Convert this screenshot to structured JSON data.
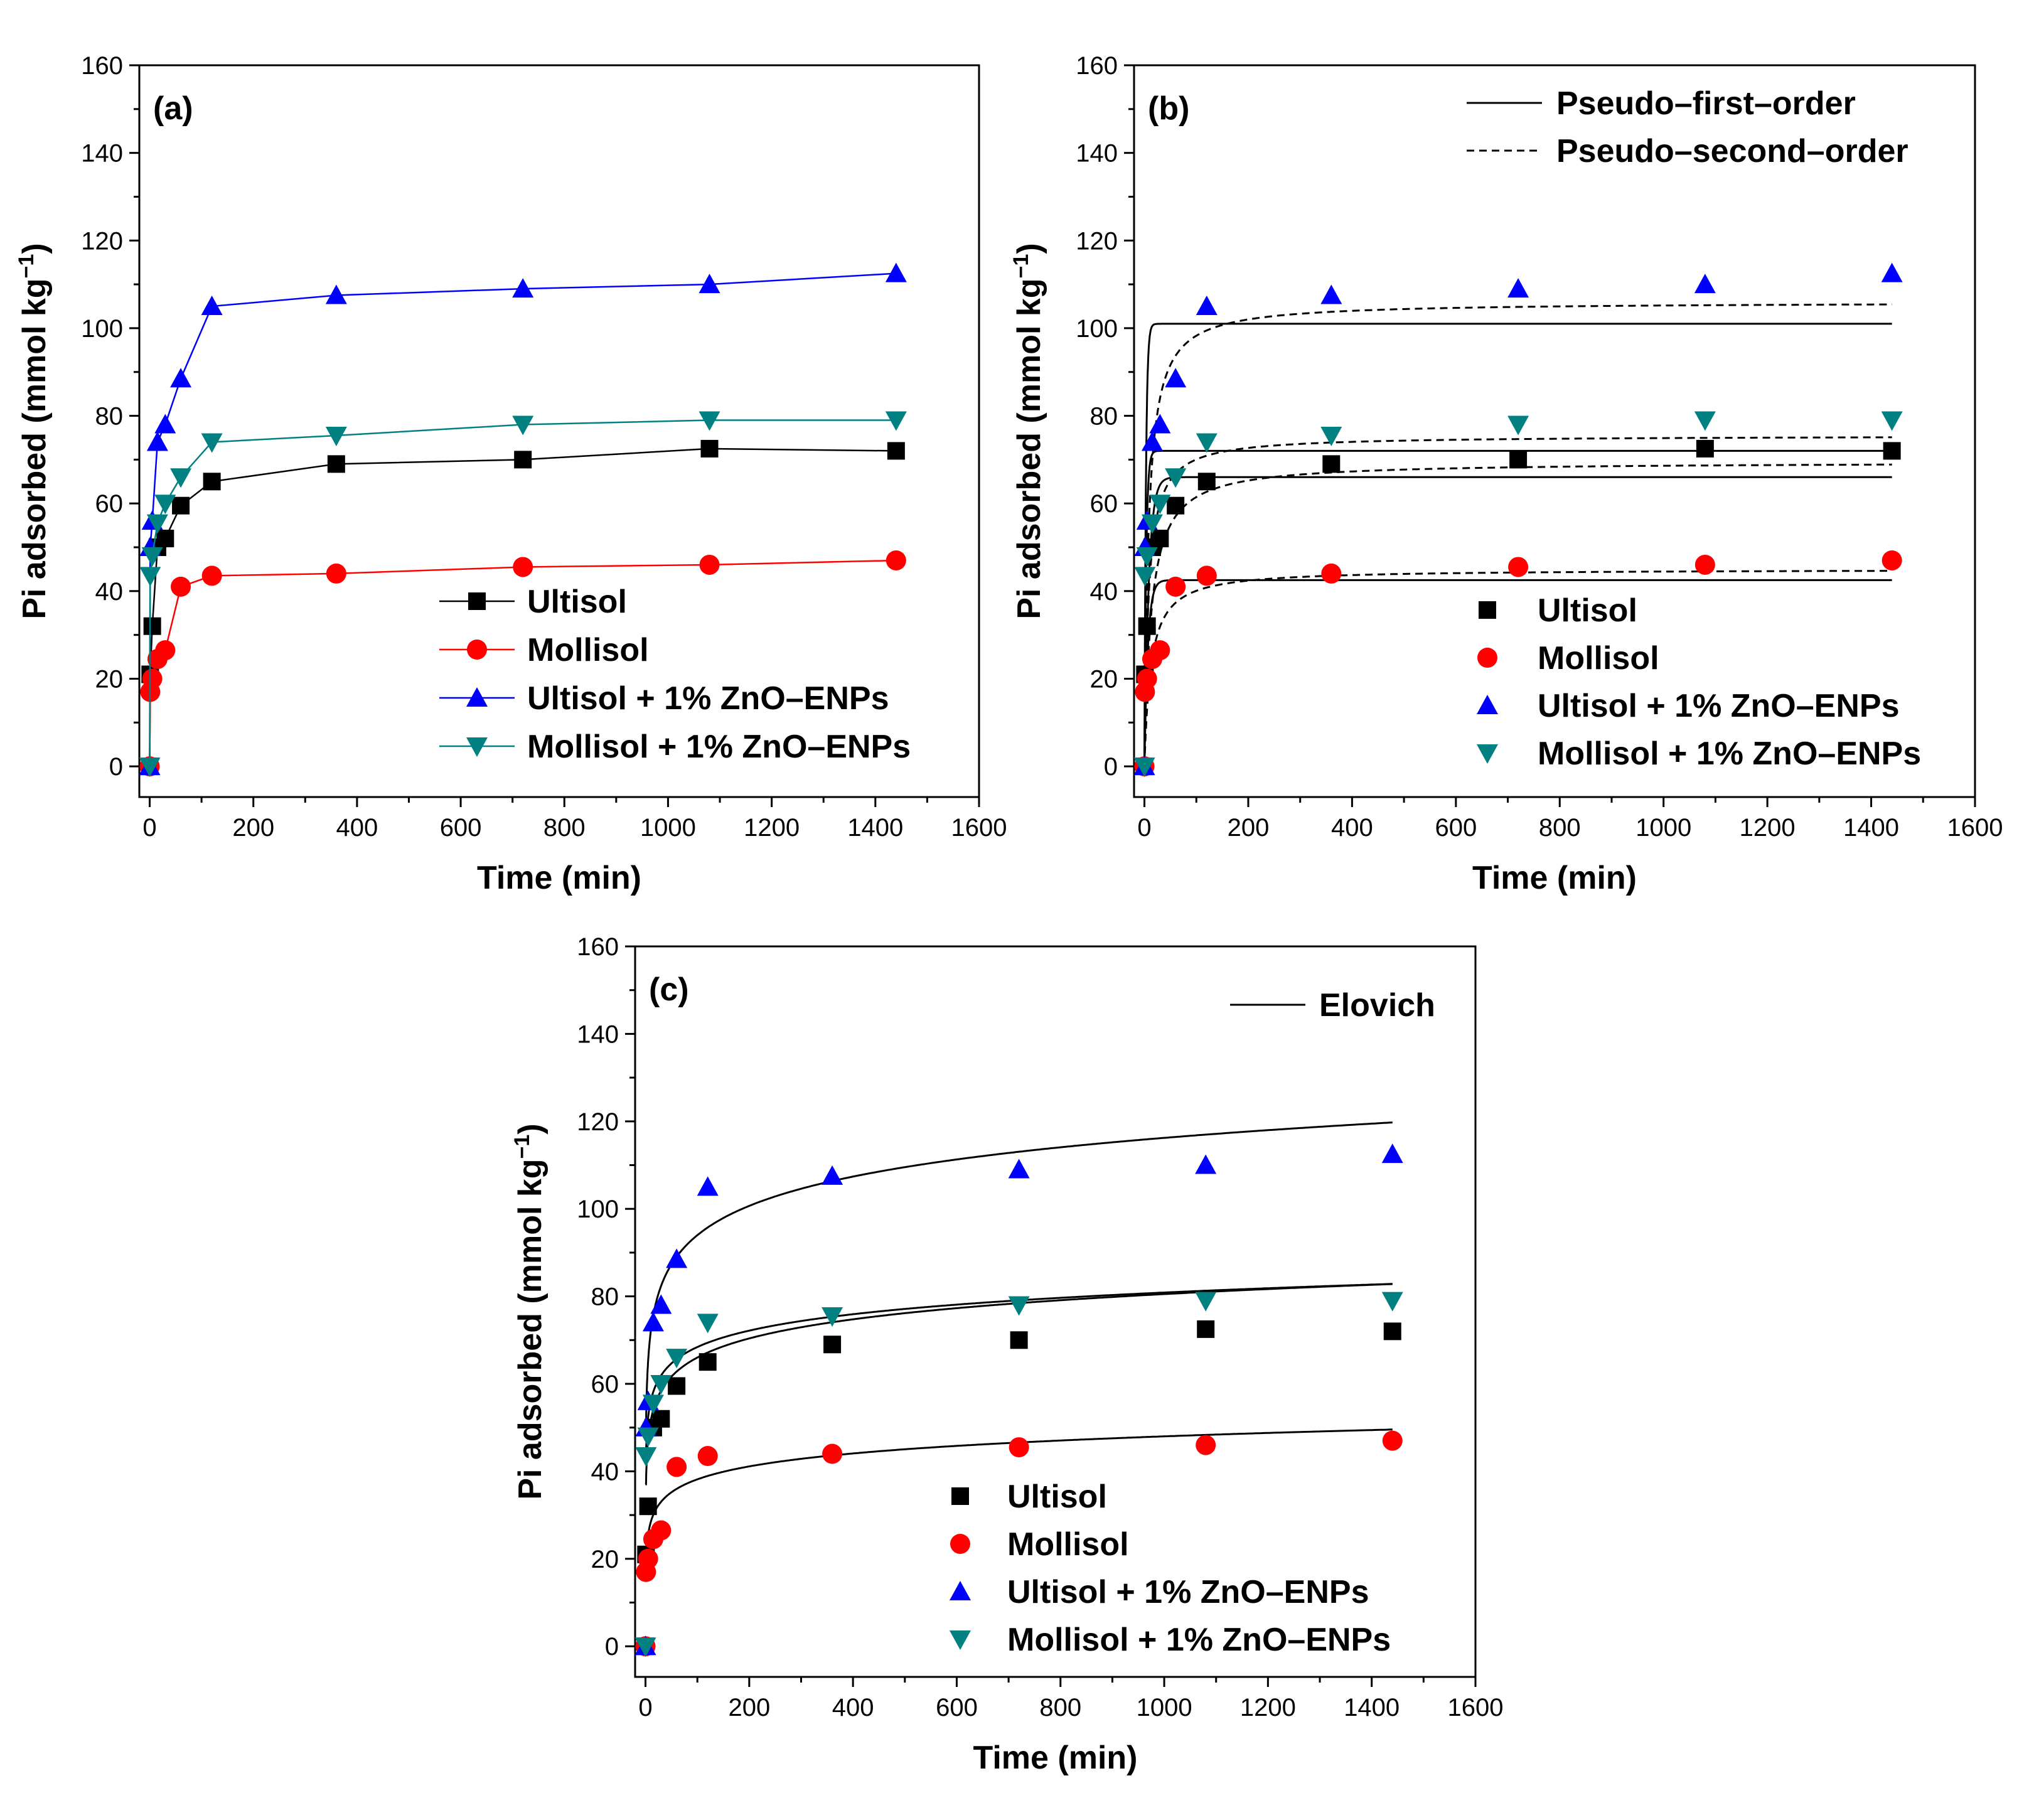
{
  "chart_data": [
    {
      "id": "a",
      "type": "line",
      "panel_label": "(a)",
      "xlabel": "Time (min)",
      "ylabel": "Pi adsorbed (mmol kg",
      "ylabel_sup": "−1",
      "ylabel_close": ")",
      "xlim": [
        -20,
        1600
      ],
      "ylim": [
        -7,
        160
      ],
      "xticks": [
        0,
        200,
        400,
        600,
        800,
        1000,
        1200,
        1400,
        1600
      ],
      "yticks": [
        0,
        20,
        40,
        60,
        80,
        100,
        120,
        140,
        160
      ],
      "legend_position": "bottom-right",
      "series": [
        {
          "name": "Ultisol",
          "color": "#000000",
          "marker": "square",
          "connect": true,
          "x": [
            0,
            1,
            5,
            15,
            30,
            60,
            120,
            360,
            720,
            1080,
            1440
          ],
          "y": [
            0,
            21,
            32,
            50,
            52,
            59.5,
            65,
            69,
            70,
            72.5,
            72
          ]
        },
        {
          "name": "Mollisol",
          "color": "#ff0000",
          "marker": "circle",
          "connect": true,
          "x": [
            0,
            1,
            5,
            15,
            30,
            60,
            120,
            360,
            720,
            1080,
            1440
          ],
          "y": [
            0,
            17,
            20,
            24.5,
            26.5,
            41,
            43.5,
            44,
            45.5,
            46,
            47
          ]
        },
        {
          "name": "Ultisol + 1% ZnO–ENPs",
          "color": "#0000ff",
          "marker": "triangle-up",
          "connect": true,
          "x": [
            0,
            1,
            5,
            15,
            30,
            60,
            120,
            360,
            720,
            1080,
            1440
          ],
          "y": [
            0,
            50,
            56,
            74,
            78,
            88.5,
            105,
            107.5,
            109,
            110,
            112.5
          ]
        },
        {
          "name": "Mollisol + 1% ZnO–ENPs",
          "color": "#008080",
          "marker": "triangle-down",
          "connect": true,
          "x": [
            0,
            1,
            5,
            15,
            30,
            60,
            120,
            360,
            720,
            1080,
            1440
          ],
          "y": [
            0,
            43.5,
            48,
            55.5,
            60,
            66,
            74,
            75.5,
            78,
            79,
            79
          ]
        }
      ]
    },
    {
      "id": "b",
      "type": "scatter",
      "panel_label": "(b)",
      "xlabel": "Time (min)",
      "ylabel": "Pi adsorbed (mmol kg",
      "ylabel_sup": "−1",
      "ylabel_close": ")",
      "xlim": [
        -20,
        1600
      ],
      "ylim": [
        -7,
        160
      ],
      "xticks": [
        0,
        200,
        400,
        600,
        800,
        1000,
        1200,
        1400,
        1600
      ],
      "yticks": [
        0,
        20,
        40,
        60,
        80,
        100,
        120,
        140,
        160
      ],
      "legend_position": "bottom-right",
      "fit_legend": {
        "position": "top-right",
        "entries": [
          "Pseudo–first–order",
          "Pseudo–second–order"
        ]
      },
      "series": [
        {
          "name": "Ultisol",
          "color": "#000000",
          "marker": "square",
          "x": [
            0,
            1,
            5,
            15,
            30,
            60,
            120,
            360,
            720,
            1080,
            1440
          ],
          "y": [
            0,
            21,
            32,
            50,
            52,
            59.5,
            65,
            69,
            70,
            72.5,
            72
          ]
        },
        {
          "name": "Mollisol",
          "color": "#ff0000",
          "marker": "circle",
          "x": [
            0,
            1,
            5,
            15,
            30,
            60,
            120,
            360,
            720,
            1080,
            1440
          ],
          "y": [
            0,
            17,
            20,
            24.5,
            26.5,
            41,
            43.5,
            44,
            45.5,
            46,
            47
          ]
        },
        {
          "name": "Ultisol + 1% ZnO–ENPs",
          "color": "#0000ff",
          "marker": "triangle-up",
          "x": [
            0,
            1,
            5,
            15,
            30,
            60,
            120,
            360,
            720,
            1080,
            1440
          ],
          "y": [
            0,
            50,
            56,
            74,
            78,
            88.5,
            105,
            107.5,
            109,
            110,
            112.5
          ]
        },
        {
          "name": "Mollisol + 1% ZnO–ENPs",
          "color": "#008080",
          "marker": "triangle-down",
          "x": [
            0,
            1,
            5,
            15,
            30,
            60,
            120,
            360,
            720,
            1080,
            1440
          ],
          "y": [
            0,
            43.5,
            48,
            55.5,
            60,
            66,
            74,
            75.5,
            78,
            79,
            79
          ]
        }
      ],
      "fits": [
        {
          "model": "pseudo-first-order",
          "style": "solid",
          "qe": 101,
          "k": 0.35
        },
        {
          "model": "pseudo-first-order",
          "style": "solid",
          "qe": 72,
          "k": 0.3
        },
        {
          "model": "pseudo-first-order",
          "style": "solid",
          "qe": 66,
          "k": 0.12
        },
        {
          "model": "pseudo-first-order",
          "style": "solid",
          "qe": 42.5,
          "k": 0.15
        },
        {
          "model": "pseudo-second-order",
          "style": "dashed",
          "qe": 106,
          "k": 0.0012
        },
        {
          "model": "pseudo-second-order",
          "style": "dashed",
          "qe": 75.5,
          "k": 0.0017
        },
        {
          "model": "pseudo-second-order",
          "style": "dashed",
          "qe": 69.5,
          "k": 0.0011
        },
        {
          "model": "pseudo-second-order",
          "style": "dashed",
          "qe": 45,
          "k": 0.0018
        }
      ]
    },
    {
      "id": "c",
      "type": "scatter",
      "panel_label": "(c)",
      "xlabel": "Time (min)",
      "ylabel": "Pi adsorbed (mmol kg",
      "ylabel_sup": "−1",
      "ylabel_close": ")",
      "xlim": [
        -20,
        1600
      ],
      "ylim": [
        -7,
        160
      ],
      "xticks": [
        0,
        200,
        400,
        600,
        800,
        1000,
        1200,
        1400,
        1600
      ],
      "yticks": [
        0,
        20,
        40,
        60,
        80,
        100,
        120,
        140,
        160
      ],
      "legend_position": "bottom-right",
      "fit_legend": {
        "position": "top-right",
        "entries": [
          "Elovich"
        ]
      },
      "series": [
        {
          "name": "Ultisol",
          "color": "#000000",
          "marker": "square",
          "x": [
            0,
            1,
            5,
            15,
            30,
            60,
            120,
            360,
            720,
            1080,
            1440
          ],
          "y": [
            0,
            21,
            32,
            50,
            52,
            59.5,
            65,
            69,
            70,
            72.5,
            72
          ]
        },
        {
          "name": "Mollisol",
          "color": "#ff0000",
          "marker": "circle",
          "x": [
            0,
            1,
            5,
            15,
            30,
            60,
            120,
            360,
            720,
            1080,
            1440
          ],
          "y": [
            0,
            17,
            20,
            24.5,
            26.5,
            41,
            43.5,
            44,
            45.5,
            46,
            47
          ]
        },
        {
          "name": "Ultisol + 1% ZnO–ENPs",
          "color": "#0000ff",
          "marker": "triangle-up",
          "x": [
            0,
            1,
            5,
            15,
            30,
            60,
            120,
            360,
            720,
            1080,
            1440
          ],
          "y": [
            0,
            50,
            56,
            74,
            78,
            88.5,
            105,
            107.5,
            109,
            110,
            112.5
          ]
        },
        {
          "name": "Mollisol + 1% ZnO–ENPs",
          "color": "#008080",
          "marker": "triangle-down",
          "x": [
            0,
            1,
            5,
            15,
            30,
            60,
            120,
            360,
            720,
            1080,
            1440
          ],
          "y": [
            0,
            43.5,
            48,
            55.5,
            60,
            66,
            74,
            75.5,
            78,
            79,
            79
          ]
        }
      ],
      "fits": [
        {
          "model": "elovich",
          "style": "solid",
          "a": 49.5,
          "b": 9.66
        },
        {
          "model": "elovich",
          "style": "solid",
          "a": 37,
          "b": 6.3
        },
        {
          "model": "elovich",
          "style": "solid",
          "a": 43.5,
          "b": 5.41
        },
        {
          "model": "elovich",
          "style": "solid",
          "a": 18.5,
          "b": 4.27
        }
      ]
    }
  ]
}
